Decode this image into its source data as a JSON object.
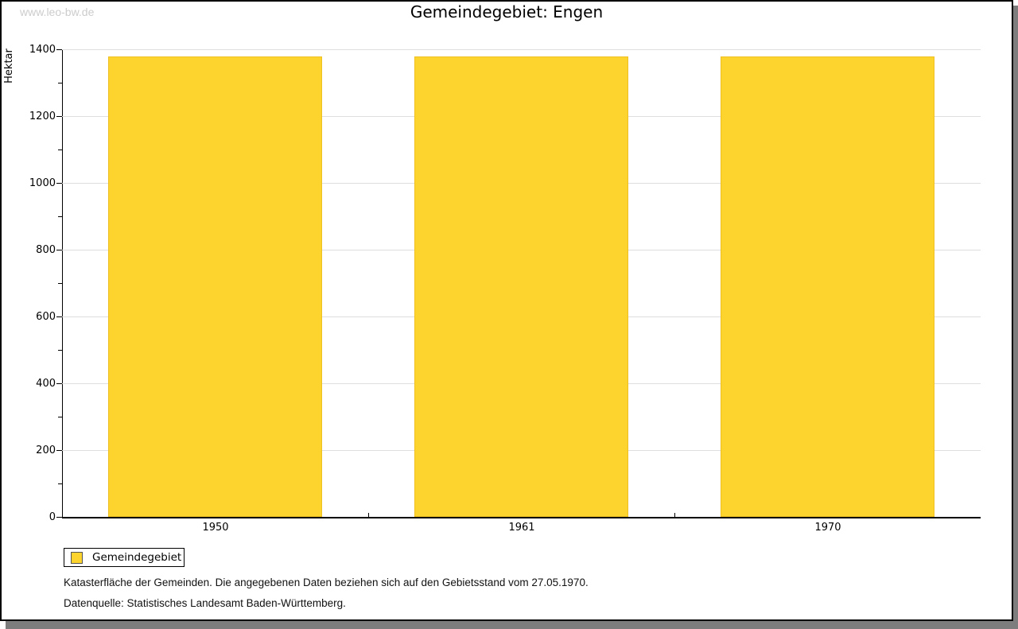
{
  "watermark": {
    "text": "www.leo-bw.de",
    "color": "#cccccc"
  },
  "header": {
    "title": "Gemeindegebiet: Engen"
  },
  "axes": {
    "y_label": "Hektar"
  },
  "legend": {
    "items": [
      {
        "label": "Gemeindegebiet"
      }
    ]
  },
  "footnotes": {
    "line1": "Katasterfläche der Gemeinden. Die angegebenen Daten beziehen sich auf den Gebietsstand vom 27.05.1970.",
    "line2": "Datenquelle: Statistisches Landesamt Baden-Württemberg."
  },
  "colors": {
    "bar_fill": "#fdd32d",
    "bar_outline": "#eec022",
    "gridline": "#dedede",
    "axis": "#000000",
    "watermark": "#cccccc",
    "shadow": "#7d7d7d"
  },
  "chart_data": {
    "type": "bar",
    "title": "Gemeindegebiet: Engen",
    "categories": [
      "1950",
      "1961",
      "1970"
    ],
    "values": [
      1378,
      1378,
      1378
    ],
    "xlabel": "",
    "ylabel": "Hektar",
    "ylim": [
      0,
      1400
    ],
    "y_major_step": 200,
    "y_minor_step": 100,
    "grid": "horizontal-major",
    "legend_entries": [
      "Gemeindegebiet"
    ],
    "legend_position": "bottom-left",
    "unit": "Hektar"
  }
}
